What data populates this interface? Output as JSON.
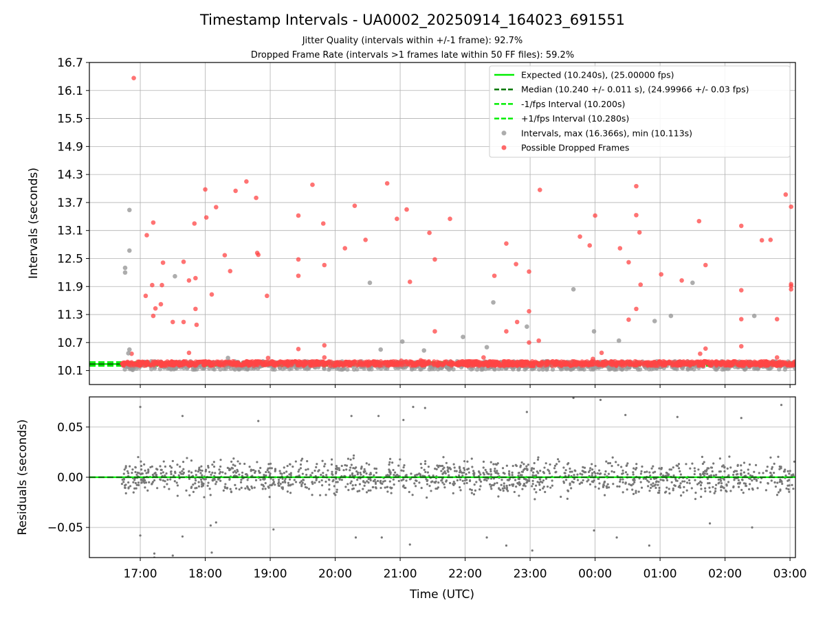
{
  "title": "Timestamp Intervals - UA0002_20250914_164023_691551",
  "subtitle_lines": [
    "Jitter Quality (intervals within +/-1 frame): 92.7%",
    "Dropped Frame Rate (intervals >1 frames late within 50 FF files): 59.2%"
  ],
  "colors": {
    "expected": "#00ee00",
    "median": "#007700",
    "fps_interval": "#00ee00",
    "intervals": "#999999",
    "dropped": "#ff4444",
    "residuals": "#777777",
    "grid": "#b0b0b0"
  },
  "chart_data": [
    {
      "type": "scatter",
      "title": "Timestamp Intervals - UA0002_20250914_164023_691551",
      "xlabel": "",
      "ylabel": "Intervals (seconds)",
      "xlim": [
        "2025-09-14 16:13",
        "2025-09-15 03:05"
      ],
      "ylim": [
        9.8,
        16.7
      ],
      "yticks": [
        "10.1",
        "10.7",
        "11.3",
        "11.9",
        "12.5",
        "13.1",
        "13.7",
        "14.3",
        "14.9",
        "15.5",
        "16.1",
        "16.7"
      ],
      "grid": true,
      "legend_position": "top-right",
      "legend": [
        "Expected (10.240s), (25.00000 fps)",
        "Median (10.240 +/- 0.011 s), (24.99966 +/- 0.03 fps)",
        "-1/fps Interval (10.200s)",
        "+1/fps Interval (10.280s)",
        "Intervals, max (16.366s), min (10.113s)",
        "Possible Dropped Frames"
      ],
      "lines": {
        "expected": 10.24,
        "median": 10.24,
        "minus_one_fps": 10.2,
        "plus_one_fps": 10.28
      },
      "dense_band": {
        "x_start": "2025-09-14 16:43",
        "x_end": "2025-09-15 03:05",
        "normal_range": [
          10.12,
          10.3
        ],
        "dropped_range": [
          10.2,
          10.3
        ]
      },
      "series": [
        {
          "name": "Possible Dropped Frames",
          "points": [
            [
              "16:54",
              16.366
            ],
            [
              "16:52",
              10.46
            ],
            [
              "17:06",
              13.0
            ],
            [
              "17:05",
              11.7
            ],
            [
              "17:12",
              13.27
            ],
            [
              "17:11",
              11.93
            ],
            [
              "17:12",
              11.27
            ],
            [
              "17:14",
              11.43
            ],
            [
              "17:19",
              11.52
            ],
            [
              "17:20",
              11.93
            ],
            [
              "17:21",
              12.41
            ],
            [
              "17:30",
              11.14
            ],
            [
              "17:40",
              12.43
            ],
            [
              "17:40",
              11.14
            ],
            [
              "17:45",
              12.03
            ],
            [
              "17:45",
              10.48
            ],
            [
              "17:50",
              13.25
            ],
            [
              "17:51",
              12.08
            ],
            [
              "17:51",
              11.42
            ],
            [
              "17:52",
              11.08
            ],
            [
              "18:00",
              13.98
            ],
            [
              "18:01",
              13.38
            ],
            [
              "18:06",
              11.73
            ],
            [
              "18:10",
              13.6
            ],
            [
              "18:18",
              12.57
            ],
            [
              "18:23",
              12.23
            ],
            [
              "18:28",
              13.95
            ],
            [
              "18:38",
              14.15
            ],
            [
              "18:47",
              13.8
            ],
            [
              "18:48",
              12.62
            ],
            [
              "18:49",
              12.58
            ],
            [
              "18:57",
              11.7
            ],
            [
              "18:58",
              10.37
            ],
            [
              "19:26",
              13.42
            ],
            [
              "19:26",
              12.48
            ],
            [
              "19:26",
              12.13
            ],
            [
              "19:26",
              10.56
            ],
            [
              "19:39",
              14.08
            ],
            [
              "19:49",
              13.25
            ],
            [
              "19:50",
              12.36
            ],
            [
              "19:50",
              10.64
            ],
            [
              "19:50",
              10.38
            ],
            [
              "20:09",
              12.72
            ],
            [
              "20:18",
              13.63
            ],
            [
              "20:28",
              12.9
            ],
            [
              "20:39",
              10.25
            ],
            [
              "20:48",
              14.11
            ],
            [
              "20:57",
              13.35
            ],
            [
              "21:01",
              10.31
            ],
            [
              "21:06",
              13.55
            ],
            [
              "21:09",
              12.0
            ],
            [
              "21:19",
              10.32
            ],
            [
              "21:27",
              13.05
            ],
            [
              "21:32",
              12.48
            ],
            [
              "21:32",
              10.94
            ],
            [
              "21:46",
              13.35
            ],
            [
              "22:17",
              10.38
            ],
            [
              "22:27",
              12.13
            ],
            [
              "22:38",
              12.82
            ],
            [
              "22:38",
              10.94
            ],
            [
              "22:47",
              12.38
            ],
            [
              "22:48",
              11.14
            ],
            [
              "22:59",
              12.22
            ],
            [
              "22:59",
              11.37
            ],
            [
              "22:59",
              10.7
            ],
            [
              "23:08",
              10.74
            ],
            [
              "23:09",
              13.97
            ],
            [
              "23:46",
              12.97
            ],
            [
              "23:55",
              12.78
            ],
            [
              "23:58",
              10.35
            ],
            [
              "00:00",
              13.42
            ],
            [
              "00:06",
              10.48
            ],
            [
              "00:23",
              12.72
            ],
            [
              "00:31",
              12.42
            ],
            [
              "00:31",
              11.19
            ],
            [
              "00:38",
              14.05
            ],
            [
              "00:38",
              13.43
            ],
            [
              "00:38",
              11.42
            ],
            [
              "00:41",
              13.06
            ],
            [
              "00:42",
              11.94
            ],
            [
              "01:01",
              12.16
            ],
            [
              "01:20",
              12.03
            ],
            [
              "01:36",
              13.3
            ],
            [
              "01:37",
              10.46
            ],
            [
              "01:42",
              12.36
            ],
            [
              "01:42",
              10.57
            ],
            [
              "02:15",
              13.2
            ],
            [
              "02:15",
              11.82
            ],
            [
              "02:15",
              11.2
            ],
            [
              "02:15",
              10.62
            ],
            [
              "02:34",
              12.89
            ],
            [
              "02:42",
              12.9
            ],
            [
              "02:48",
              11.2
            ],
            [
              "02:48",
              10.38
            ],
            [
              "02:56",
              13.87
            ],
            [
              "03:01",
              13.61
            ],
            [
              "03:01",
              11.95
            ],
            [
              "03:01",
              11.91
            ],
            [
              "03:01",
              11.84
            ]
          ]
        },
        {
          "name": "Intervals, max (16.366s), min (10.113s)",
          "points": [
            [
              "16:46",
              12.3
            ],
            [
              "16:46",
              12.2
            ],
            [
              "16:50",
              13.54
            ],
            [
              "16:50",
              12.67
            ],
            [
              "16:49",
              10.47
            ],
            [
              "16:50",
              10.55
            ],
            [
              "17:32",
              12.12
            ],
            [
              "18:21",
              10.37
            ],
            [
              "20:32",
              11.98
            ],
            [
              "20:42",
              10.55
            ],
            [
              "21:02",
              10.72
            ],
            [
              "21:22",
              10.53
            ],
            [
              "21:58",
              10.82
            ],
            [
              "22:20",
              10.6
            ],
            [
              "22:26",
              11.56
            ],
            [
              "22:57",
              11.04
            ],
            [
              "23:40",
              11.84
            ],
            [
              "23:59",
              10.94
            ],
            [
              "00:22",
              10.74
            ],
            [
              "00:55",
              11.16
            ],
            [
              "01:10",
              11.27
            ],
            [
              "01:30",
              11.98
            ],
            [
              "02:27",
              11.27
            ],
            [
              "16:53",
              10.113
            ]
          ]
        }
      ]
    },
    {
      "type": "scatter",
      "xlabel": "Time (UTC)",
      "ylabel": "Residuals (seconds)",
      "xlim": [
        "2025-09-14 16:13",
        "2025-09-15 03:05"
      ],
      "xticks": [
        "17:00",
        "18:00",
        "19:00",
        "20:00",
        "21:00",
        "22:00",
        "23:00",
        "00:00",
        "01:00",
        "02:00",
        "03:00"
      ],
      "ylim": [
        -0.08,
        0.08
      ],
      "yticks": [
        "−0.05",
        "0.00",
        "0.05"
      ],
      "grid": true,
      "zero_line": 0.0,
      "residual_spread": {
        "typical": 0.025,
        "max": 0.08
      },
      "outliers": [
        [
          "17:00",
          0.07
        ],
        [
          "17:00",
          -0.058
        ],
        [
          "17:13",
          -0.076
        ],
        [
          "17:13",
          -0.08
        ],
        [
          "17:30",
          -0.078
        ],
        [
          "17:39",
          0.061
        ],
        [
          "17:39",
          -0.059
        ],
        [
          "18:05",
          -0.048
        ],
        [
          "18:06",
          -0.075
        ],
        [
          "18:10",
          -0.045
        ],
        [
          "18:49",
          0.056
        ],
        [
          "19:03",
          -0.052
        ],
        [
          "20:15",
          0.061
        ],
        [
          "20:19",
          -0.06
        ],
        [
          "20:40",
          0.061
        ],
        [
          "20:43",
          -0.06
        ],
        [
          "21:03",
          0.057
        ],
        [
          "21:09",
          -0.067
        ],
        [
          "21:12",
          0.07
        ],
        [
          "21:23",
          0.069
        ],
        [
          "22:20",
          -0.06
        ],
        [
          "22:38",
          -0.068
        ],
        [
          "22:57",
          0.065
        ],
        [
          "23:02",
          -0.073
        ],
        [
          "23:40",
          0.079
        ],
        [
          "23:59",
          -0.053
        ],
        [
          "00:05",
          0.077
        ],
        [
          "00:20",
          -0.06
        ],
        [
          "00:28",
          0.062
        ],
        [
          "00:50",
          -0.068
        ],
        [
          "01:16",
          0.06
        ],
        [
          "01:46",
          -0.046
        ],
        [
          "02:15",
          0.059
        ],
        [
          "02:25",
          -0.05
        ],
        [
          "02:52",
          0.072
        ]
      ]
    }
  ]
}
